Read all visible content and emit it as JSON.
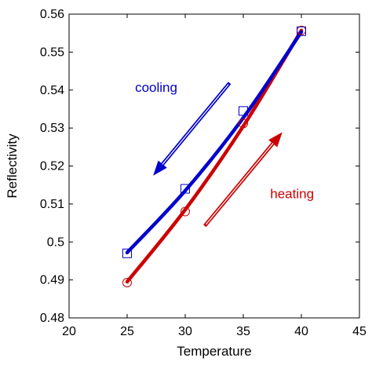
{
  "chart_data": {
    "type": "line",
    "title": "",
    "xlabel": "Temperature",
    "ylabel": "Reflectivity",
    "xlim": [
      20,
      45
    ],
    "ylim": [
      0.48,
      0.56
    ],
    "xticks": [
      20,
      25,
      30,
      35,
      40,
      45
    ],
    "yticks": [
      0.48,
      0.49,
      0.5,
      0.51,
      0.52,
      0.53,
      0.54,
      0.55,
      0.56
    ],
    "grid": false,
    "legend": "none",
    "series": [
      {
        "key": "cooling",
        "color": "#0000cc",
        "marker": "square",
        "points": [
          {
            "x": 25,
            "y": 0.497
          },
          {
            "x": 30,
            "y": 0.514
          },
          {
            "x": 35,
            "y": 0.5345
          },
          {
            "x": 40,
            "y": 0.5555
          }
        ],
        "fit": [
          {
            "x": 25,
            "y": 0.4972
          },
          {
            "x": 30,
            "y": 0.5135
          },
          {
            "x": 35,
            "y": 0.5327
          },
          {
            "x": 40,
            "y": 0.5553
          }
        ]
      },
      {
        "key": "heating",
        "color": "#cc0000",
        "marker": "circle",
        "points": [
          {
            "x": 25,
            "y": 0.4893
          },
          {
            "x": 30,
            "y": 0.508
          },
          {
            "x": 35,
            "y": 0.5312
          },
          {
            "x": 40,
            "y": 0.5557
          }
        ],
        "fit": [
          {
            "x": 25,
            "y": 0.4895
          },
          {
            "x": 30,
            "y": 0.5085
          },
          {
            "x": 35,
            "y": 0.5305
          },
          {
            "x": 40,
            "y": 0.5557
          }
        ]
      }
    ],
    "annotations": [
      {
        "key": "cooling-annotation",
        "text": "cooling",
        "color": "#0000cc",
        "text_at": {
          "x": 27.5,
          "y": 0.5395
        },
        "arrow_from": {
          "x": 33.8,
          "y": 0.5418
        },
        "arrow_to": {
          "x": 27.3,
          "y": 0.5177
        }
      },
      {
        "key": "heating-annotation",
        "text": "heating",
        "color": "#cc0000",
        "text_at": {
          "x": 39.2,
          "y": 0.5115
        },
        "arrow_from": {
          "x": 31.7,
          "y": 0.5043
        },
        "arrow_to": {
          "x": 38.3,
          "y": 0.5287
        }
      }
    ]
  }
}
